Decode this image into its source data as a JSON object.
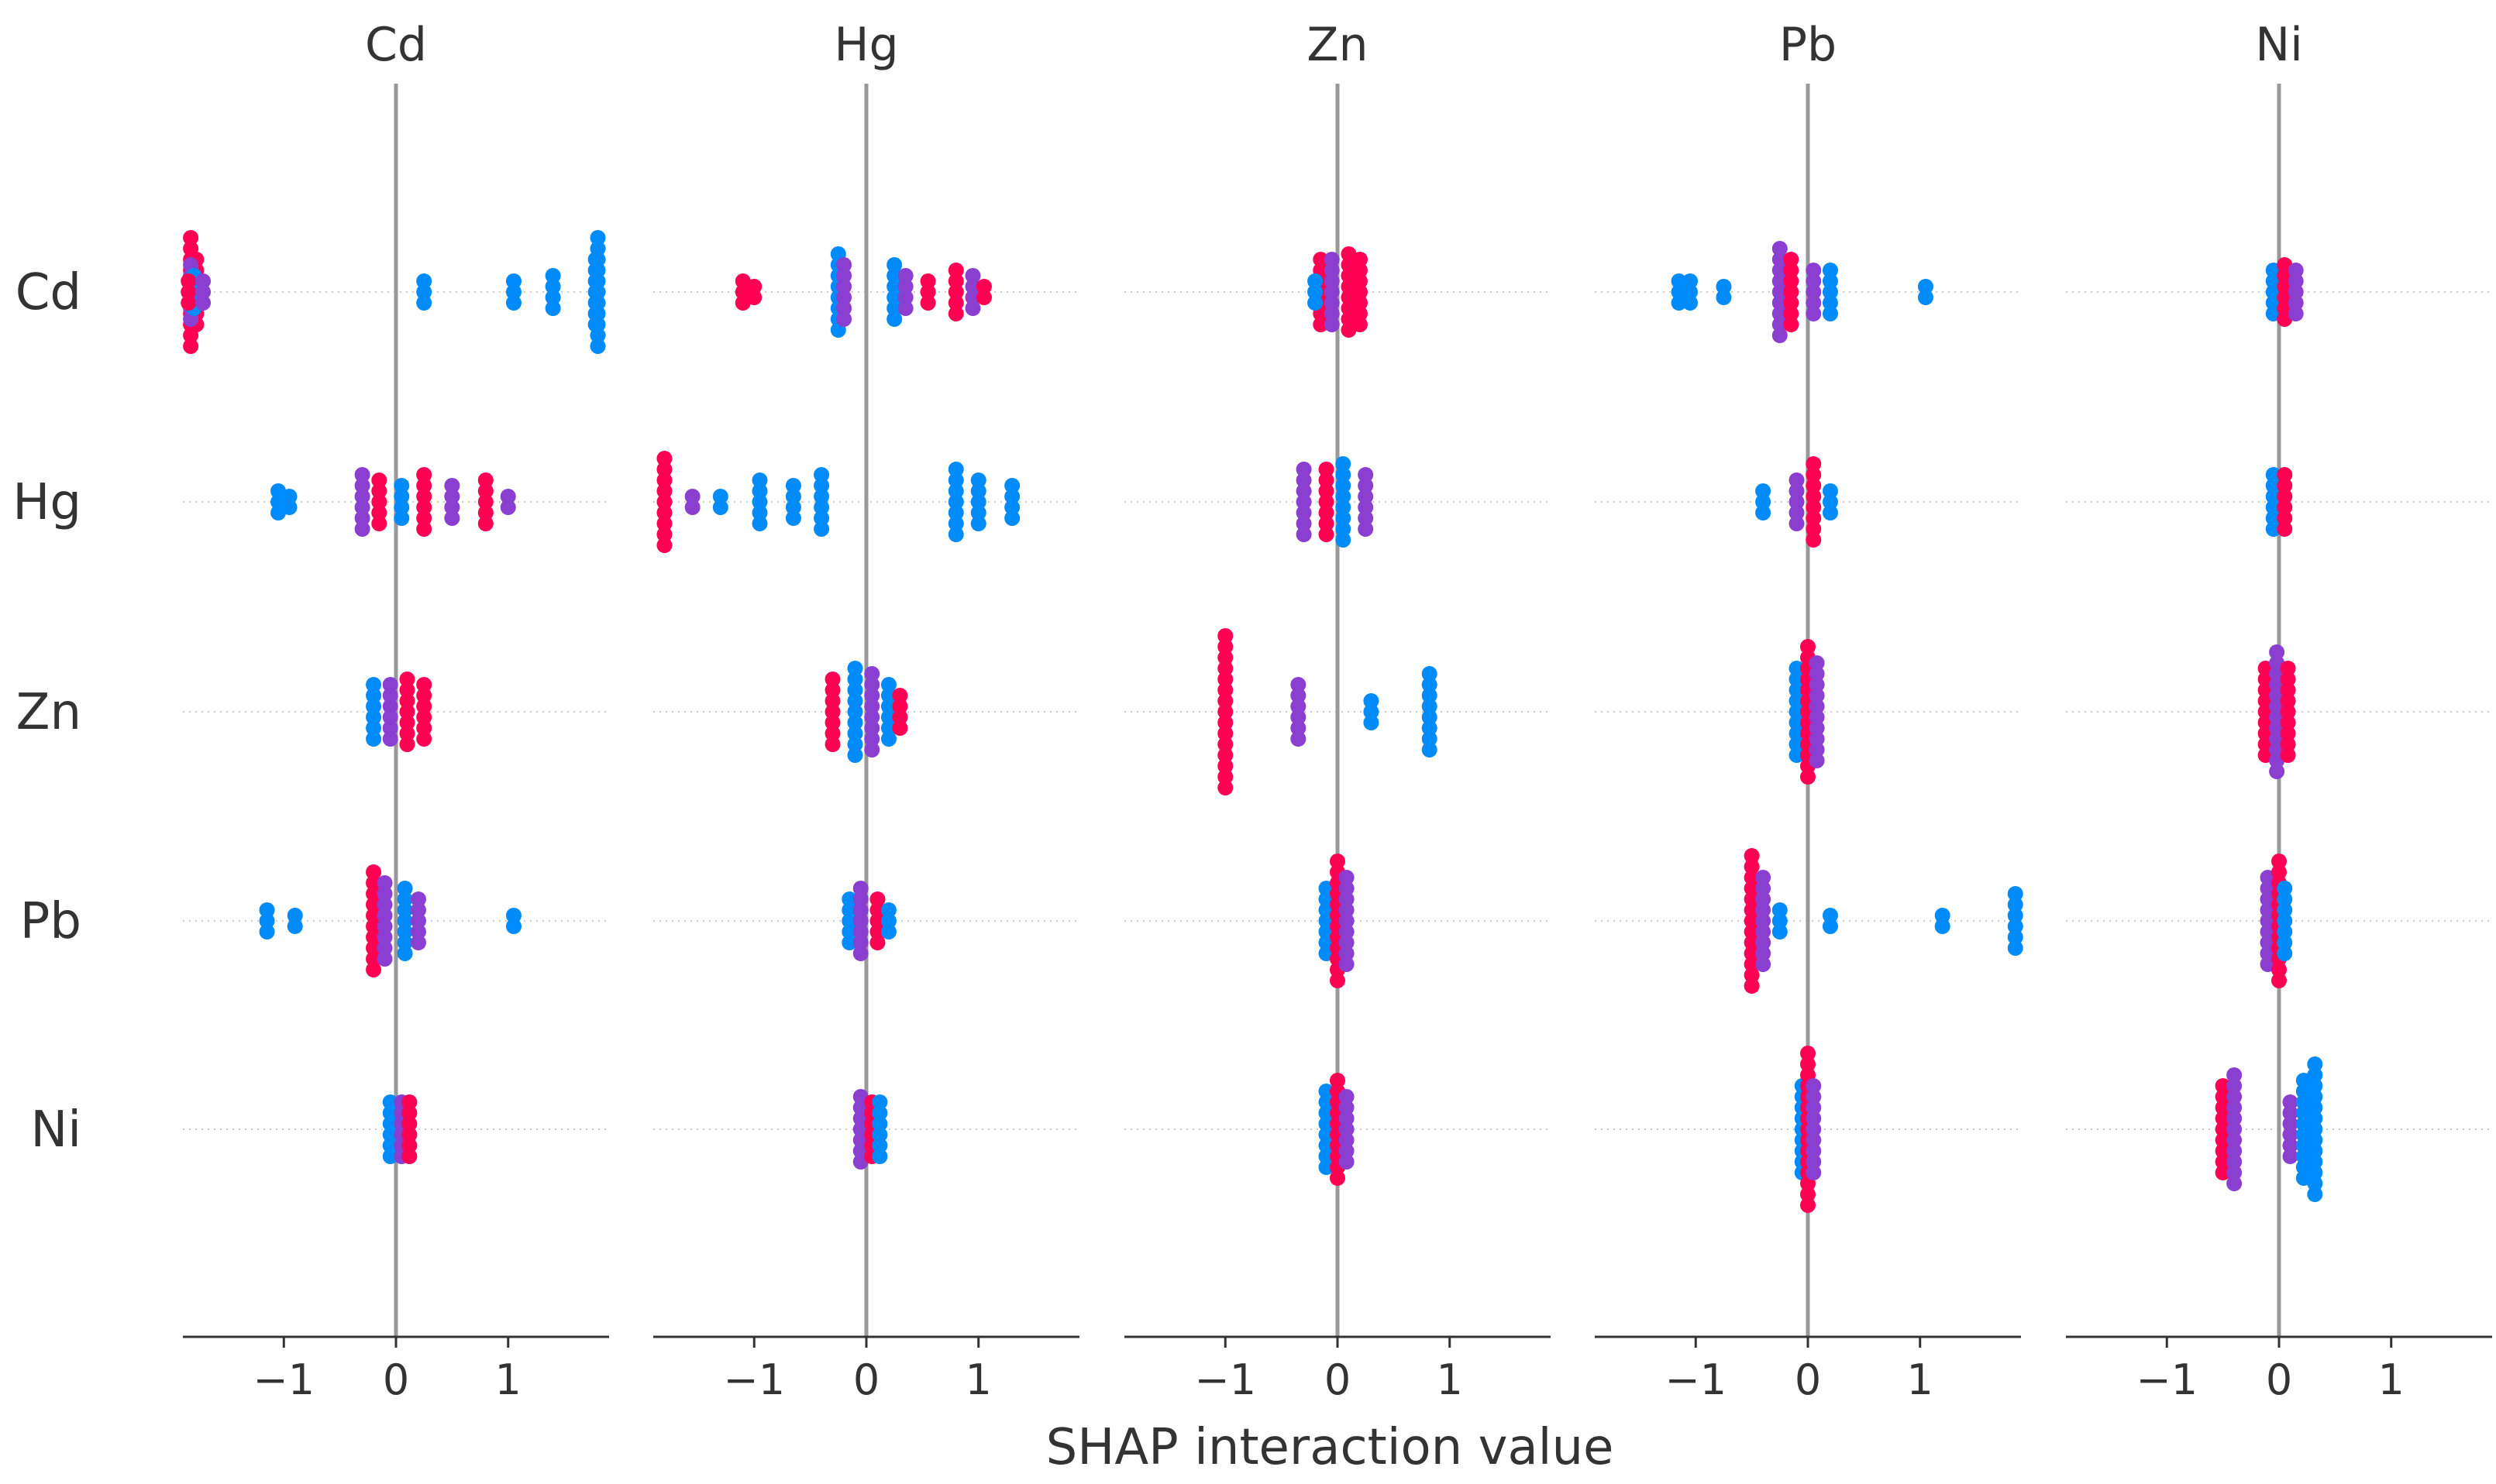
{
  "chart_data": {
    "type": "scatter",
    "subtype": "shap-interaction-beeswarm-grid",
    "xlabel": "SHAP interaction value",
    "features": [
      "Cd",
      "Hg",
      "Zn",
      "Pb",
      "Ni"
    ],
    "panel_titles": [
      "Cd",
      "Hg",
      "Zn",
      "Pb",
      "Ni"
    ],
    "row_labels": [
      "Cd",
      "Hg",
      "Zn",
      "Pb",
      "Ni"
    ],
    "xlim": [
      -1.9,
      1.9
    ],
    "x_ticks": [
      -1,
      0,
      1
    ],
    "x_tick_labels": [
      "−1",
      "0",
      "1"
    ],
    "colors": {
      "high": "#ff0052",
      "mid": "#8a3fd1",
      "low": "#008bfb",
      "zero_line": "#999999",
      "row_guide": "#cccccc",
      "axis": "#333333"
    },
    "cells": [
      [
        {
          "points": [
            [
              -1.83,
              11,
              "high"
            ],
            [
              -1.78,
              7,
              "high"
            ],
            [
              -1.83,
              6,
              "mid"
            ],
            [
              -1.8,
              4,
              "low"
            ],
            [
              -1.85,
              3,
              "high"
            ],
            [
              -1.72,
              3,
              "mid"
            ],
            [
              0.25,
              3,
              "low"
            ],
            [
              1.05,
              3,
              "low"
            ],
            [
              1.4,
              4,
              "low"
            ],
            [
              1.78,
              7,
              "low"
            ],
            [
              1.8,
              11,
              "low"
            ]
          ]
        },
        {
          "points": [
            [
              -1.1,
              3,
              "high"
            ],
            [
              -1.0,
              2,
              "high"
            ],
            [
              -0.25,
              8,
              "low"
            ],
            [
              -0.2,
              6,
              "mid"
            ],
            [
              0.25,
              6,
              "low"
            ],
            [
              0.35,
              4,
              "mid"
            ],
            [
              0.55,
              3,
              "high"
            ],
            [
              0.8,
              5,
              "high"
            ],
            [
              0.95,
              4,
              "mid"
            ],
            [
              1.05,
              2,
              "high"
            ]
          ]
        },
        {
          "points": [
            [
              -0.15,
              7,
              "high"
            ],
            [
              -0.05,
              7,
              "mid"
            ],
            [
              0.1,
              8,
              "high"
            ],
            [
              0.2,
              7,
              "high"
            ],
            [
              -0.2,
              3,
              "low"
            ]
          ]
        },
        {
          "points": [
            [
              -1.15,
              3,
              "low"
            ],
            [
              -1.05,
              3,
              "low"
            ],
            [
              -0.75,
              2,
              "low"
            ],
            [
              -0.25,
              9,
              "mid"
            ],
            [
              -0.15,
              7,
              "high"
            ],
            [
              0.05,
              5,
              "mid"
            ],
            [
              0.2,
              5,
              "low"
            ],
            [
              1.05,
              2,
              "low"
            ]
          ]
        },
        {
          "points": [
            [
              -0.05,
              5,
              "low"
            ],
            [
              0.05,
              6,
              "high"
            ],
            [
              0.15,
              5,
              "mid"
            ]
          ]
        }
      ],
      [
        {
          "points": [
            [
              -1.05,
              3,
              "low"
            ],
            [
              -0.95,
              2,
              "low"
            ],
            [
              -0.3,
              6,
              "mid"
            ],
            [
              -0.15,
              5,
              "high"
            ],
            [
              0.05,
              4,
              "low"
            ],
            [
              0.25,
              6,
              "high"
            ],
            [
              0.5,
              4,
              "mid"
            ],
            [
              0.8,
              5,
              "high"
            ],
            [
              1.0,
              2,
              "mid"
            ]
          ]
        },
        {
          "points": [
            [
              -1.8,
              9,
              "high"
            ],
            [
              -1.55,
              2,
              "mid"
            ],
            [
              -1.3,
              2,
              "low"
            ],
            [
              -0.95,
              5,
              "low"
            ],
            [
              -0.65,
              4,
              "low"
            ],
            [
              -0.4,
              6,
              "low"
            ],
            [
              0.8,
              7,
              "low"
            ],
            [
              1.0,
              5,
              "low"
            ],
            [
              1.3,
              4,
              "low"
            ]
          ]
        },
        {
          "points": [
            [
              -0.3,
              7,
              "mid"
            ],
            [
              -0.1,
              7,
              "high"
            ],
            [
              0.05,
              8,
              "low"
            ],
            [
              0.25,
              6,
              "mid"
            ]
          ]
        },
        {
          "points": [
            [
              -0.4,
              3,
              "low"
            ],
            [
              -0.1,
              5,
              "mid"
            ],
            [
              0.05,
              8,
              "high"
            ],
            [
              0.2,
              3,
              "low"
            ]
          ]
        },
        {
          "points": [
            [
              -0.05,
              6,
              "low"
            ],
            [
              0.05,
              6,
              "high"
            ]
          ]
        }
      ],
      [
        {
          "points": [
            [
              -0.2,
              6,
              "low"
            ],
            [
              -0.05,
              6,
              "mid"
            ],
            [
              0.1,
              7,
              "high"
            ],
            [
              0.25,
              6,
              "high"
            ]
          ]
        },
        {
          "points": [
            [
              -0.3,
              7,
              "high"
            ],
            [
              -0.1,
              9,
              "low"
            ],
            [
              0.05,
              8,
              "mid"
            ],
            [
              0.2,
              6,
              "low"
            ],
            [
              0.3,
              4,
              "high"
            ]
          ]
        },
        {
          "points": [
            [
              -1.0,
              15,
              "high"
            ],
            [
              -0.35,
              6,
              "mid"
            ],
            [
              0.3,
              3,
              "low"
            ],
            [
              0.82,
              8,
              "low"
            ]
          ]
        },
        {
          "points": [
            [
              -0.1,
              9,
              "low"
            ],
            [
              0.0,
              13,
              "high"
            ],
            [
              0.08,
              10,
              "mid"
            ]
          ]
        },
        {
          "points": [
            [
              -0.12,
              9,
              "high"
            ],
            [
              -0.02,
              12,
              "mid"
            ],
            [
              0.08,
              9,
              "high"
            ]
          ]
        }
      ],
      [
        {
          "points": [
            [
              -1.15,
              3,
              "low"
            ],
            [
              -0.9,
              2,
              "low"
            ],
            [
              -0.2,
              10,
              "high"
            ],
            [
              -0.1,
              8,
              "mid"
            ],
            [
              0.08,
              7,
              "low"
            ],
            [
              0.2,
              5,
              "mid"
            ],
            [
              1.05,
              2,
              "low"
            ]
          ]
        },
        {
          "points": [
            [
              -0.15,
              5,
              "low"
            ],
            [
              -0.05,
              7,
              "mid"
            ],
            [
              0.1,
              5,
              "high"
            ],
            [
              0.2,
              3,
              "low"
            ]
          ]
        },
        {
          "points": [
            [
              -0.1,
              7,
              "low"
            ],
            [
              0.0,
              12,
              "high"
            ],
            [
              0.08,
              9,
              "mid"
            ]
          ]
        },
        {
          "points": [
            [
              -0.5,
              13,
              "high"
            ],
            [
              -0.4,
              9,
              "mid"
            ],
            [
              -0.25,
              3,
              "low"
            ],
            [
              0.2,
              2,
              "low"
            ],
            [
              1.2,
              2,
              "low"
            ],
            [
              1.85,
              6,
              "low"
            ]
          ]
        },
        {
          "points": [
            [
              -0.1,
              9,
              "mid"
            ],
            [
              0.0,
              12,
              "high"
            ],
            [
              0.05,
              7,
              "low"
            ]
          ]
        }
      ],
      [
        {
          "points": [
            [
              -0.05,
              6,
              "low"
            ],
            [
              0.05,
              6,
              "mid"
            ],
            [
              0.12,
              6,
              "high"
            ]
          ]
        },
        {
          "points": [
            [
              -0.05,
              7,
              "mid"
            ],
            [
              0.05,
              6,
              "high"
            ],
            [
              0.12,
              6,
              "low"
            ]
          ]
        },
        {
          "points": [
            [
              -0.1,
              8,
              "low"
            ],
            [
              0.0,
              10,
              "high"
            ],
            [
              0.08,
              7,
              "mid"
            ]
          ]
        },
        {
          "points": [
            [
              -0.05,
              9,
              "low"
            ],
            [
              0.0,
              15,
              "high"
            ],
            [
              0.05,
              9,
              "mid"
            ]
          ]
        },
        {
          "points": [
            [
              -0.5,
              9,
              "high"
            ],
            [
              -0.4,
              11,
              "mid"
            ],
            [
              0.1,
              6,
              "mid"
            ],
            [
              0.22,
              10,
              "low"
            ],
            [
              0.32,
              13,
              "low"
            ]
          ]
        }
      ]
    ]
  }
}
